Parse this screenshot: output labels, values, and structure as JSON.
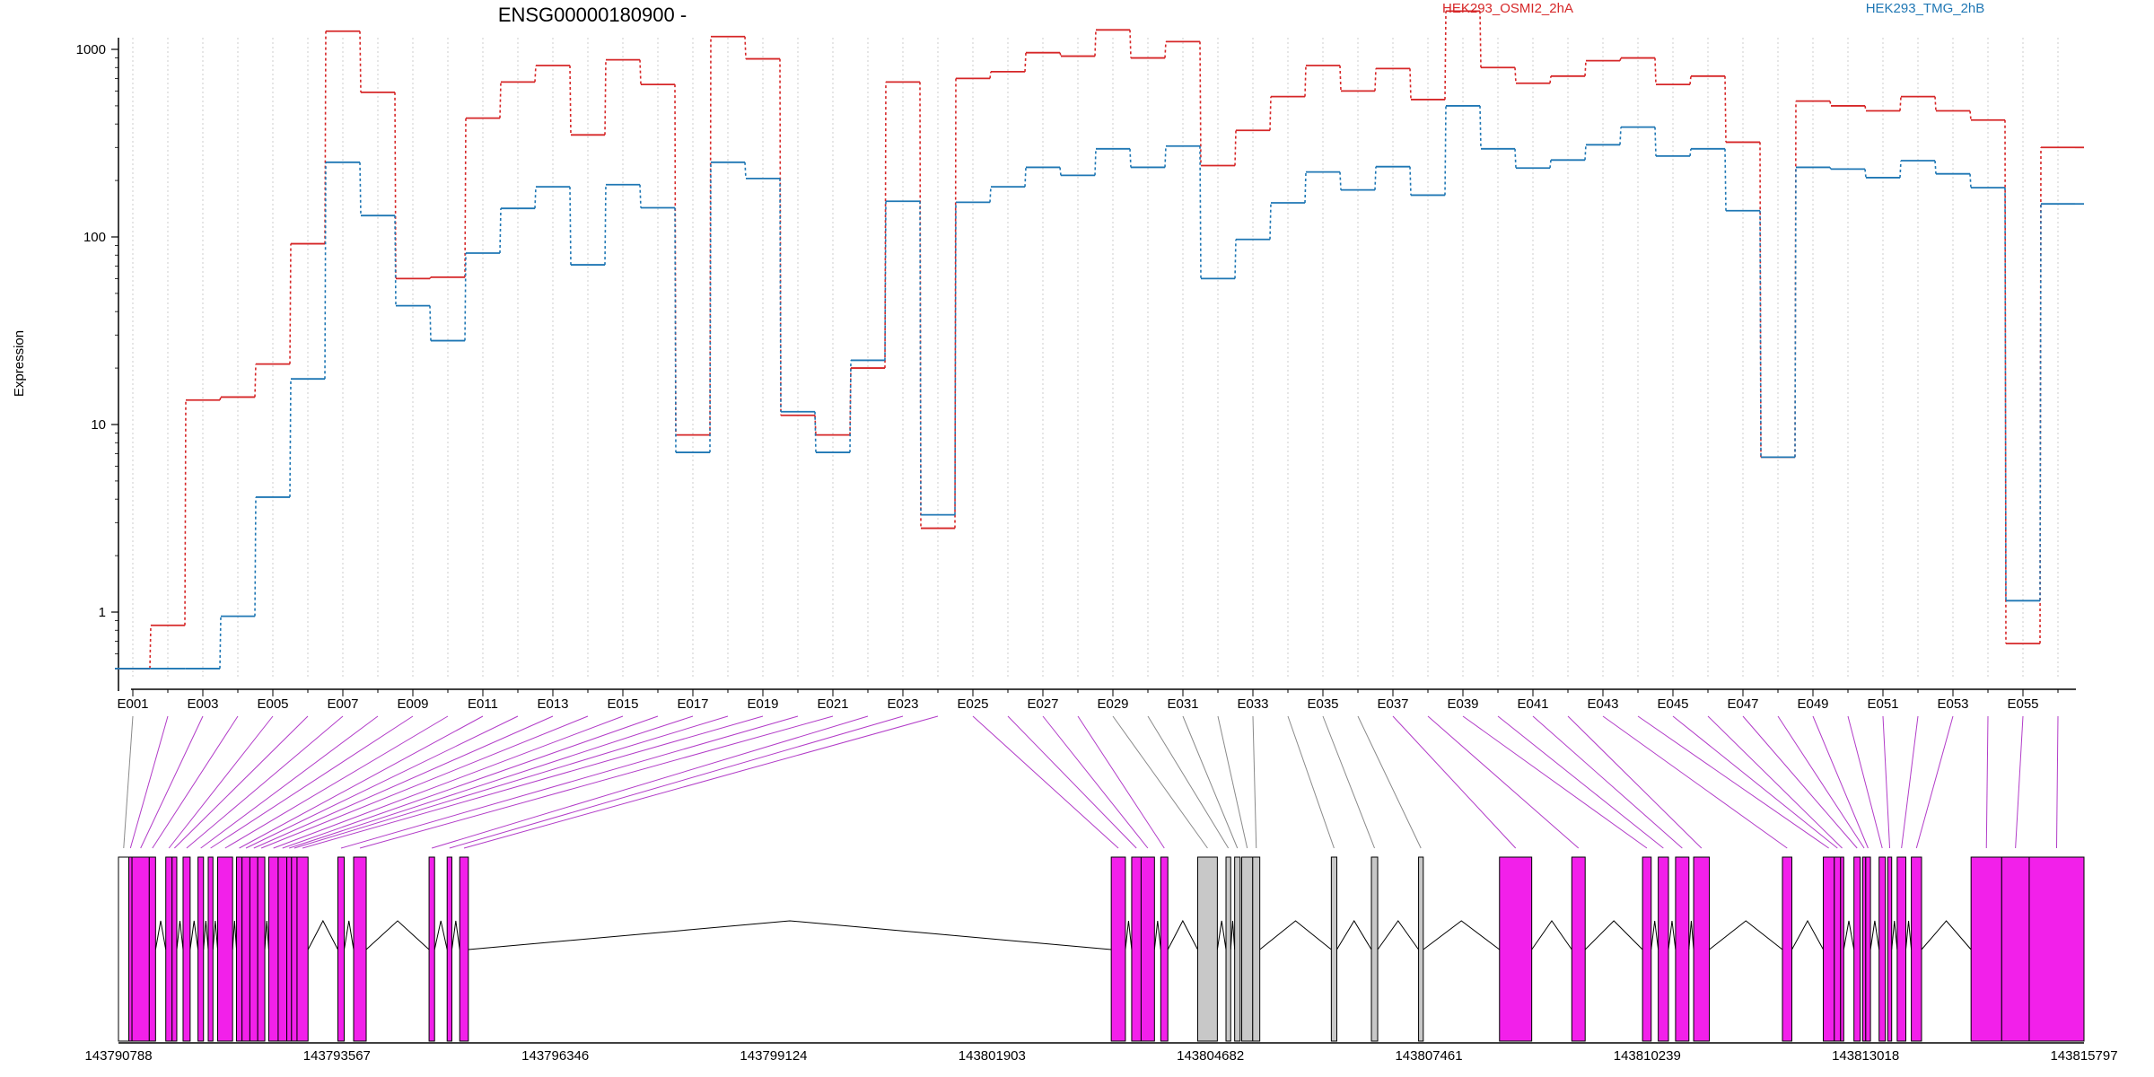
{
  "chart_data": {
    "type": "line",
    "title": "ENSG00000180900 -",
    "ylabel": "Expression",
    "y_scale": "log",
    "ylim": [
      0.4,
      2000
    ],
    "y_ticks": [
      1,
      10,
      100,
      1000
    ],
    "y_tick_labels": [
      "1",
      "10",
      "100",
      "1000"
    ],
    "grid": "vertical dotted",
    "legend_placement": "top",
    "categories": [
      "E001",
      "E002",
      "E003",
      "E004",
      "E005",
      "E006",
      "E007",
      "E008",
      "E009",
      "E010",
      "E011",
      "E012",
      "E013",
      "E014",
      "E015",
      "E016",
      "E017",
      "E018",
      "E019",
      "E020",
      "E021",
      "E022",
      "E023",
      "E024",
      "E025",
      "E026",
      "E027",
      "E028",
      "E029",
      "E030",
      "E031",
      "E032",
      "E033",
      "E034",
      "E035",
      "E036",
      "E037",
      "E038",
      "E039",
      "E040",
      "E041",
      "E042",
      "E043",
      "E044",
      "E045",
      "E046",
      "E047",
      "E048",
      "E049",
      "E050",
      "E051",
      "E052",
      "E053",
      "E054",
      "E055",
      "E056"
    ],
    "category_labels_shown": [
      "E001",
      "E003",
      "E005",
      "E007",
      "E009",
      "E011",
      "E013",
      "E015",
      "E017",
      "E019",
      "E021",
      "E023",
      "E025",
      "E027",
      "E029",
      "E031",
      "E033",
      "E035",
      "E037",
      "E039",
      "E041",
      "E043",
      "E045",
      "E047",
      "E049",
      "E051",
      "E053",
      "E055"
    ],
    "series": [
      {
        "name": "HEK293_OSMI2_2hA",
        "color": "#d62728",
        "values": [
          0.5,
          0.85,
          13.5,
          14,
          21,
          92,
          1250,
          590,
          60,
          61,
          430,
          670,
          820,
          350,
          880,
          650,
          8.8,
          1170,
          890,
          11.2,
          8.8,
          20,
          670,
          2.8,
          700,
          760,
          960,
          920,
          1270,
          900,
          1100,
          240,
          370,
          560,
          820,
          600,
          790,
          540,
          1600,
          800,
          660,
          720,
          870,
          900,
          650,
          720,
          320,
          6.7,
          530,
          500,
          470,
          560,
          470,
          420,
          0.68,
          300
        ]
      },
      {
        "name": "HEK293_TMG_2hB",
        "color": "#1f77b4",
        "values": [
          0.5,
          0.5,
          0.5,
          0.95,
          4.1,
          17.5,
          250,
          130,
          43,
          28,
          82,
          142,
          185,
          71,
          190,
          143,
          7.1,
          250,
          205,
          11.7,
          7.1,
          22,
          155,
          3.3,
          153,
          185,
          235,
          213,
          295,
          235,
          305,
          60,
          97,
          152,
          222,
          178,
          237,
          167,
          500,
          295,
          233,
          257,
          310,
          385,
          270,
          295,
          138,
          6.7,
          235,
          230,
          207,
          255,
          217,
          183,
          1.15,
          150
        ]
      }
    ],
    "gene_model": {
      "coordinate_ticks": [
        "143790788",
        "143793567",
        "143796346",
        "143799124",
        "143801903",
        "143804682",
        "143807461",
        "143810239",
        "143813018",
        "143815797"
      ],
      "coord_range": [
        143790788,
        143815797
      ],
      "exon_color": "#f220ea",
      "intron_exon_color": "#c8c8c8",
      "exons": [
        {
          "id": "E001",
          "start": 143790788,
          "end": 143790920,
          "type": "white"
        },
        {
          "id": "E002",
          "start": 143790920,
          "end": 143790960,
          "type": "exon"
        },
        {
          "id": "E003",
          "start": 143790960,
          "end": 143791180,
          "type": "exon"
        },
        {
          "id": "E004",
          "start": 143791180,
          "end": 143791260,
          "type": "exon"
        },
        {
          "id": "E005",
          "start": 143791390,
          "end": 143791470,
          "type": "exon"
        },
        {
          "id": "E006",
          "start": 143791470,
          "end": 143791530,
          "type": "exon"
        },
        {
          "id": "E007",
          "start": 143791610,
          "end": 143791700,
          "type": "exon"
        },
        {
          "id": "E008",
          "start": 143791800,
          "end": 143791870,
          "type": "exon"
        },
        {
          "id": "E009",
          "start": 143791930,
          "end": 143791990,
          "type": "exon"
        },
        {
          "id": "E010",
          "start": 143792050,
          "end": 143792240,
          "type": "exon"
        },
        {
          "id": "E011",
          "start": 143792290,
          "end": 143792360,
          "type": "exon"
        },
        {
          "id": "E012",
          "start": 143792360,
          "end": 143792460,
          "type": "exon"
        },
        {
          "id": "E013",
          "start": 143792460,
          "end": 143792560,
          "type": "exon"
        },
        {
          "id": "E014",
          "start": 143792560,
          "end": 143792650,
          "type": "exon"
        },
        {
          "id": "E015",
          "start": 143792700,
          "end": 143792820,
          "type": "exon"
        },
        {
          "id": "E016",
          "start": 143792820,
          "end": 143792930,
          "type": "exon"
        },
        {
          "id": "E017",
          "start": 143792930,
          "end": 143792990,
          "type": "exon"
        },
        {
          "id": "E018",
          "start": 143792990,
          "end": 143793060,
          "type": "exon"
        },
        {
          "id": "E019",
          "start": 143793060,
          "end": 143793200,
          "type": "exon"
        },
        {
          "id": "E020",
          "start": 143793580,
          "end": 143793660,
          "type": "exon"
        },
        {
          "id": "E021",
          "start": 143793780,
          "end": 143793940,
          "type": "exon"
        },
        {
          "id": "E022",
          "start": 143794740,
          "end": 143794810,
          "type": "exon"
        },
        {
          "id": "E023",
          "start": 143794970,
          "end": 143795030,
          "type": "exon"
        },
        {
          "id": "E024",
          "start": 143795130,
          "end": 143795240,
          "type": "exon"
        },
        {
          "id": "E025",
          "start": 143803420,
          "end": 143803600,
          "type": "exon"
        },
        {
          "id": "E026",
          "start": 143803680,
          "end": 143803800,
          "type": "exon"
        },
        {
          "id": "E027",
          "start": 143803800,
          "end": 143803970,
          "type": "exon"
        },
        {
          "id": "E028",
          "start": 143804050,
          "end": 143804140,
          "type": "exon"
        },
        {
          "id": "E029",
          "start": 143804520,
          "end": 143804770,
          "type": "gray"
        },
        {
          "id": "E030",
          "start": 143804880,
          "end": 143804940,
          "type": "gray"
        },
        {
          "id": "E031",
          "start": 143804990,
          "end": 143805060,
          "type": "gray"
        },
        {
          "id": "E032",
          "start": 143805080,
          "end": 143805220,
          "type": "gray"
        },
        {
          "id": "E033",
          "start": 143805220,
          "end": 143805310,
          "type": "gray"
        },
        {
          "id": "E034",
          "start": 143806220,
          "end": 143806290,
          "type": "gray"
        },
        {
          "id": "E035",
          "start": 143806730,
          "end": 143806810,
          "type": "gray"
        },
        {
          "id": "E036",
          "start": 143807330,
          "end": 143807390,
          "type": "gray"
        },
        {
          "id": "E037",
          "start": 143808360,
          "end": 143808770,
          "type": "exon"
        },
        {
          "id": "E038",
          "start": 143809280,
          "end": 143809450,
          "type": "exon"
        },
        {
          "id": "E039",
          "start": 143810180,
          "end": 143810290,
          "type": "exon"
        },
        {
          "id": "E040",
          "start": 143810380,
          "end": 143810510,
          "type": "exon"
        },
        {
          "id": "E041",
          "start": 143810600,
          "end": 143810770,
          "type": "exon"
        },
        {
          "id": "E042",
          "start": 143810830,
          "end": 143811030,
          "type": "exon"
        },
        {
          "id": "E043",
          "start": 143811960,
          "end": 143812080,
          "type": "exon"
        },
        {
          "id": "E044",
          "start": 143812480,
          "end": 143812620,
          "type": "exon"
        },
        {
          "id": "E045",
          "start": 143812620,
          "end": 143812700,
          "type": "exon"
        },
        {
          "id": "E046",
          "start": 143812700,
          "end": 143812740,
          "type": "exon"
        },
        {
          "id": "E047",
          "start": 143812870,
          "end": 143812950,
          "type": "exon"
        },
        {
          "id": "E048",
          "start": 143812980,
          "end": 143813020,
          "type": "exon"
        },
        {
          "id": "E049",
          "start": 143813020,
          "end": 143813080,
          "type": "exon"
        },
        {
          "id": "E050",
          "start": 143813190,
          "end": 143813270,
          "type": "exon"
        },
        {
          "id": "E051",
          "start": 143813300,
          "end": 143813350,
          "type": "exon"
        },
        {
          "id": "E052",
          "start": 143813420,
          "end": 143813530,
          "type": "exon"
        },
        {
          "id": "E053",
          "start": 143813600,
          "end": 143813730,
          "type": "exon"
        },
        {
          "id": "E054",
          "start": 143814360,
          "end": 143814750,
          "type": "exon"
        },
        {
          "id": "E055",
          "start": 143814750,
          "end": 143815100,
          "type": "exon"
        },
        {
          "id": "E056",
          "start": 143815100,
          "end": 143815797,
          "type": "exon"
        }
      ]
    }
  }
}
